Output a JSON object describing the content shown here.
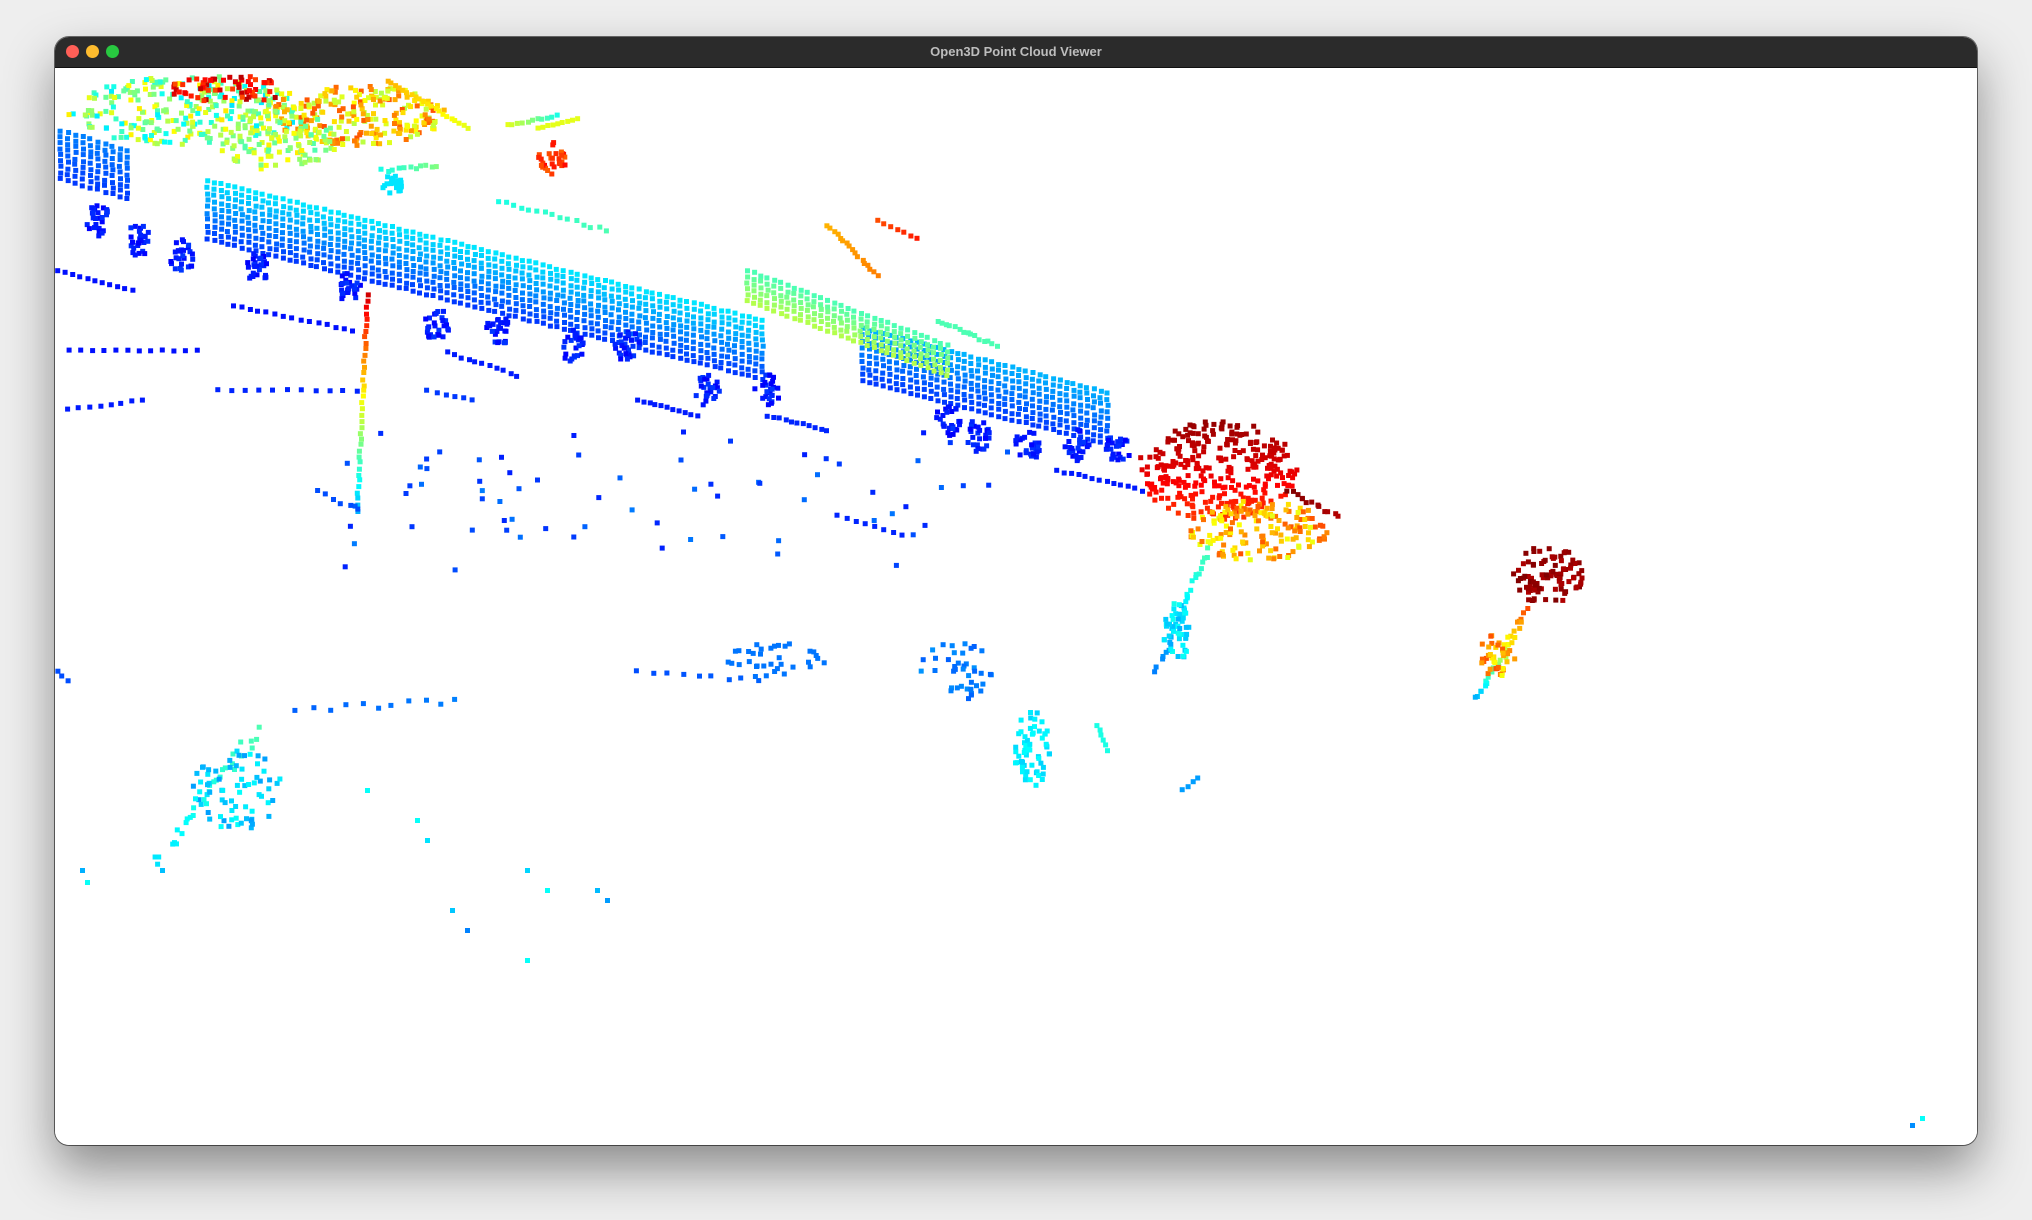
{
  "window": {
    "title": "Open3D Point Cloud Viewer"
  },
  "controls": {
    "close": "close-icon",
    "minimize": "minimize-icon",
    "zoom": "zoom-icon"
  },
  "colors": {
    "background": "#ffffff",
    "titlebar": "#2b2b2b",
    "close": "#ff5f57",
    "minimize": "#febc2e",
    "zoom": "#28c840",
    "colormap": "jet"
  }
}
